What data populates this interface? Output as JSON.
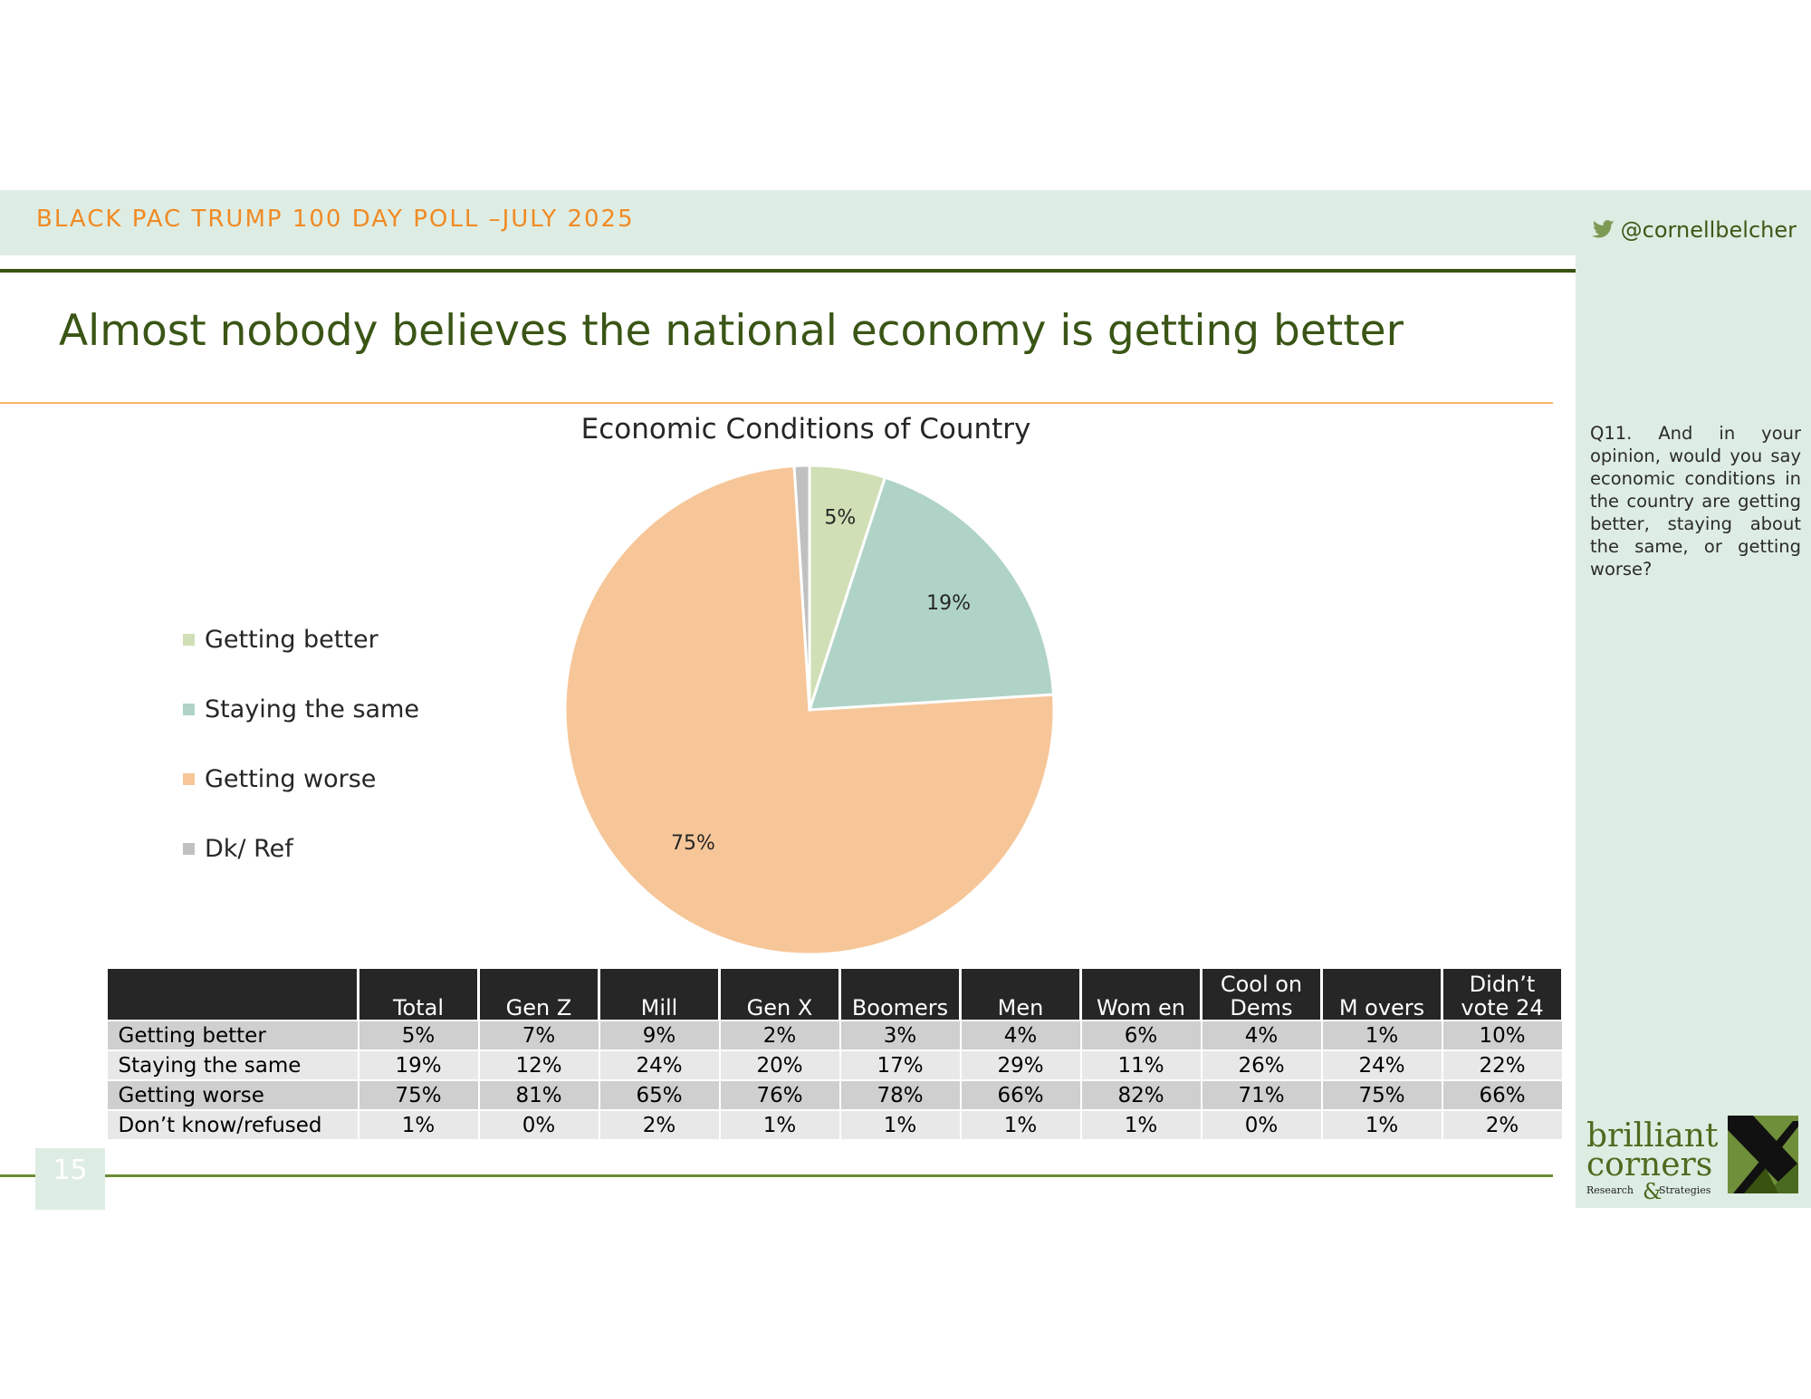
{
  "header": {
    "title": "BLACK PAC TRUMP 100 DAY POLL –JULY 2025",
    "twitter_handle": "@cornellbelcher",
    "twitter_icon": "twitter-bird-icon"
  },
  "slide": {
    "title": "Almost nobody believes the national economy is getting better",
    "page_number": "15"
  },
  "question": "Q11. And in your opinion, would you say economic conditions in the country are getting better, staying about the same, or getting worse?",
  "colors": {
    "accent_orange": "#f08a24",
    "dark_green": "#3a5210",
    "panel_green": "#deede3"
  },
  "chart_data": {
    "type": "pie",
    "title": "Economic Conditions of Country",
    "categories": [
      "Getting better",
      "Staying the same",
      "Getting worse",
      "Dk/ Ref"
    ],
    "values": [
      5,
      19,
      75,
      1
    ],
    "data_labels": [
      "5%",
      "19%",
      "75%",
      ""
    ],
    "colors": [
      "#d0dfb5",
      "#b0d3c7",
      "#f6c699",
      "#c0c0c0"
    ],
    "legend_position": "left"
  },
  "table": {
    "columns": [
      "",
      "Total",
      "Gen Z",
      "Mill",
      "Gen X",
      "Boomers",
      "Men",
      "Wom en",
      "Cool on Dems",
      "M overs",
      "Didn’t vote 24"
    ],
    "rows": [
      {
        "label": "Getting better",
        "values": [
          "5%",
          "7%",
          "9%",
          "2%",
          "3%",
          "4%",
          "6%",
          "4%",
          "1%",
          "10%"
        ]
      },
      {
        "label": "Staying the same",
        "values": [
          "19%",
          "12%",
          "24%",
          "20%",
          "17%",
          "29%",
          "11%",
          "26%",
          "24%",
          "22%"
        ]
      },
      {
        "label": "Getting worse",
        "values": [
          "75%",
          "81%",
          "65%",
          "76%",
          "78%",
          "66%",
          "82%",
          "71%",
          "75%",
          "66%"
        ]
      },
      {
        "label": "Don’t know/refused",
        "values": [
          "1%",
          "0%",
          "2%",
          "1%",
          "1%",
          "1%",
          "1%",
          "0%",
          "1%",
          "2%"
        ]
      }
    ]
  },
  "logo": {
    "line1": "brilliant",
    "line2": "corners",
    "amp": "&",
    "left": "Research",
    "right": "Strategies"
  }
}
